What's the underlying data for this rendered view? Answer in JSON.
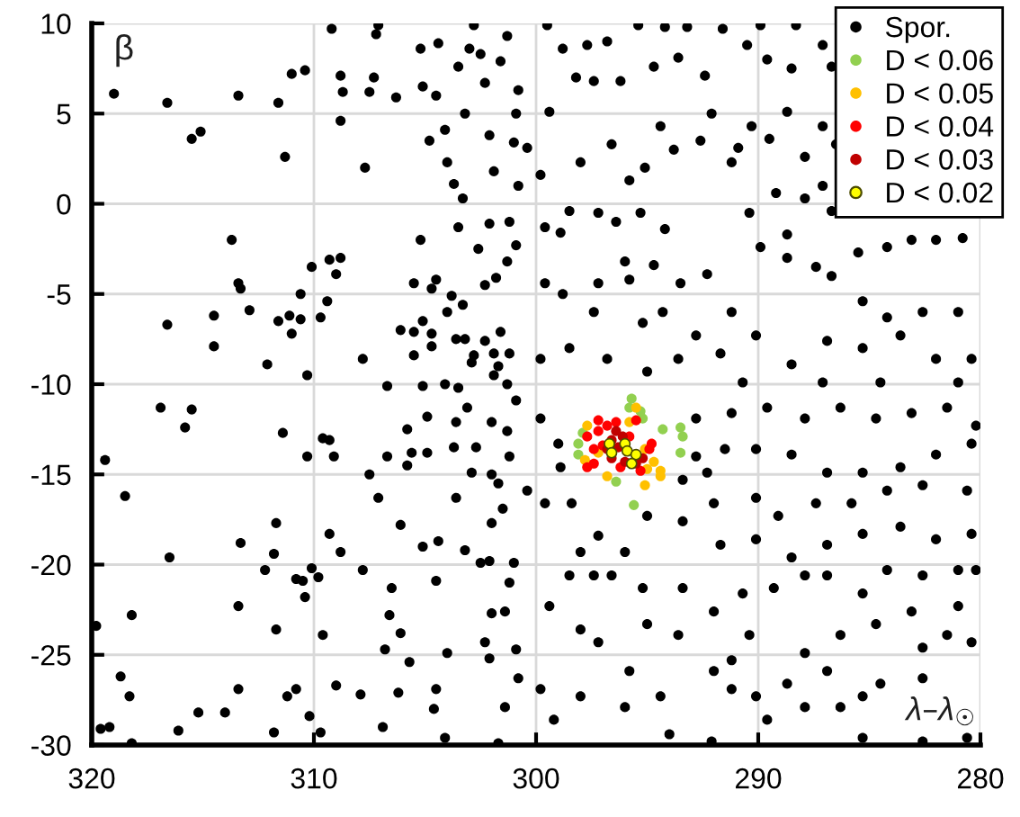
{
  "chart_data": {
    "type": "scatter",
    "xlabel": "λ–λ$_{☉}$",
    "ylabel": "β",
    "xlim": [
      320,
      280
    ],
    "ylim": [
      -30,
      10
    ],
    "xticks": [
      320,
      310,
      300,
      290,
      280
    ],
    "yticks": [
      -30,
      -25,
      -20,
      -15,
      -10,
      -5,
      0,
      5,
      10
    ],
    "grid": true,
    "legend": "top right",
    "marker": "circle",
    "series": [
      {
        "name": "Spor.",
        "color": "#000000",
        "x": [
          319.0,
          316.6,
          315.5,
          315.1,
          313.4,
          311.6,
          311.3,
          311.0,
          310.4,
          309.2,
          308.8,
          308.7,
          308.8,
          307.7,
          307.5,
          307.3,
          307.1,
          307.2,
          306.3,
          305.2,
          305.1,
          304.5,
          304.4,
          304.1,
          304.8,
          304.0,
          303.7,
          303.3,
          303.5,
          305.2,
          302.8,
          303.0,
          303.5,
          302.5,
          303.2,
          302.3,
          302.1,
          301.9,
          301.3,
          301.6,
          301.0,
          300.9,
          300.8,
          301.2,
          302.1,
          302.6,
          300.9,
          301.3,
          313.7,
          313.4,
          313.3,
          312.9,
          314.5,
          314.5,
          316.6,
          312.1,
          311.6,
          311.1,
          311.0,
          310.6,
          310.6,
          310.3,
          310.1,
          309.4,
          309.7,
          309.3,
          309.0,
          308.8,
          307.8,
          306.7,
          306.1,
          305.5,
          305.5,
          304.7,
          304.5,
          305.5,
          305.1,
          304.7,
          304.7,
          304.0,
          303.8,
          303.6,
          303.2,
          303.3,
          302.8,
          302.9,
          302.3,
          301.6,
          301.9,
          301.7,
          301.8,
          302.3,
          301.2,
          301.9,
          301.3,
          304.1,
          305.1,
          303.5,
          319.8,
          319.4,
          319.6,
          319.2,
          318.5,
          318.2,
          318.3,
          318.7,
          318.2,
          316.9,
          315.8,
          315.5,
          316.5,
          316.1,
          315.2,
          314.0,
          313.4,
          313.4,
          313.3,
          312.2,
          311.8,
          311.7,
          311.7,
          311.8,
          311.4,
          310.8,
          310.5,
          310.4,
          311.2,
          310.8,
          310.3,
          310.2,
          310.1,
          309.8,
          309.6,
          309.7,
          309.6,
          309.3,
          309.1,
          309.3,
          308.8,
          309.0,
          307.9,
          307.8,
          307.5,
          307.1,
          306.9,
          306.7,
          306.8,
          306.6,
          306.5,
          306.2,
          306.1,
          306.1,
          305.8,
          305.6,
          305.8,
          305.7,
          305.1,
          304.9,
          304.9,
          304.5,
          304.6,
          304.5,
          304.4,
          304.1,
          304.0,
          303.7,
          303.6,
          303.6,
          303.2,
          303.1,
          302.7,
          302.9,
          302.5,
          302.1,
          302.3,
          302.1,
          302.0,
          302.0,
          302.0,
          301.7,
          301.5,
          301.4,
          301.4,
          301.7,
          301.2,
          301.0,
          300.9,
          300.8,
          302.0,
          301.3,
          301.2,
          299.5,
          298.8,
          297.7,
          296.8,
          295.4,
          294.2,
          293.2,
          291.6,
          289.9,
          288.3,
          287.1,
          298.2,
          297.4,
          296.2,
          294.7,
          293.6,
          292.4,
          290.5,
          289.6,
          288.5,
          286.7,
          300.8,
          300.4,
          299.4,
          298.0,
          296.6,
          295.8,
          295.1,
          294.4,
          293.8,
          292.6,
          292.1,
          291.2,
          290.9,
          290.3,
          289.5,
          288.7,
          287.9,
          287.1,
          286.5,
          299.8,
          298.5,
          297.2,
          295.3,
          294.2,
          299.6,
          298.9,
          296.4,
          296.0,
          297.2,
          299.6,
          298.8,
          295.8,
          294.7,
          293.5,
          292.3,
          291.2,
          290.4,
          289.9,
          288.7,
          288.7,
          287.4,
          286.7,
          285.5,
          284.2,
          283.1,
          282.0,
          280.8,
          285.3,
          284.2,
          282.6,
          281.0,
          280.4,
          282.0,
          283.6,
          285.3,
          286.9,
          288.5,
          290.1,
          291.7,
          292.8,
          294.3,
          295.2,
          297.4,
          298.5,
          299.8,
          296.8,
          295.0,
          293.6,
          290.7,
          287.1,
          284.5,
          281.0,
          289.2,
          287.9,
          287.1,
          286.7,
          300.9,
          299.8,
          299.0,
          298.9,
          299.6,
          300.4,
          298.4,
          298.0,
          297.2,
          296.0,
          298.5,
          297.4,
          296.6,
          295.2,
          299.4,
          298.0,
          297.2,
          295.0,
          293.6,
          293.4,
          292.0,
          290.7,
          290.4,
          291.2,
          292.0,
          299.8,
          299.2,
          298.0,
          295.8,
          294.4,
          294.0,
          296.0,
          292.1,
          291.2,
          290.1,
          289.6,
          288.7,
          287.9,
          286.9,
          286.3,
          285.3,
          284.5,
          282.6,
          280.6,
          282.6,
          285.3,
          287.9,
          286.3,
          284.7,
          283.1,
          281.5,
          280.4,
          281.0,
          282.6,
          289.3,
          287.9,
          286.9,
          285.3,
          284.2,
          282.6,
          281.0,
          280.2,
          280.4,
          282.0,
          283.6,
          285.3,
          286.9,
          288.5,
          290.1,
          291.7,
          293.4,
          292.0,
          290.1,
          289.1,
          287.4,
          285.8,
          284.2,
          282.6,
          280.6,
          280.4,
          282.0,
          283.6,
          285.3,
          286.9,
          288.5,
          290.1,
          291.5,
          292.3,
          292.8,
          291.2,
          289.6,
          287.9,
          286.3,
          284.7,
          283.1,
          281.5,
          280.2,
          295.0,
          293.4,
          292.8
        ],
        "values": [
          6.1,
          5.6,
          3.6,
          4.0,
          6.0,
          5.6,
          2.6,
          7.2,
          7.4,
          9.7,
          7.1,
          6.2,
          4.6,
          2.0,
          6.2,
          7.0,
          9.9,
          9.4,
          5.9,
          8.6,
          6.5,
          6.0,
          8.9,
          4.1,
          3.5,
          2.3,
          1.1,
          0.3,
          -1.3,
          -2.0,
          9.9,
          8.6,
          7.6,
          8.3,
          5.0,
          6.7,
          3.8,
          1.8,
          9.3,
          7.9,
          3.4,
          5.0,
          1.0,
          -1.0,
          -1.1,
          -2.5,
          -2.3,
          -3.2,
          -2.0,
          -4.4,
          -4.7,
          -5.9,
          -6.2,
          -7.9,
          -6.7,
          -8.9,
          -6.5,
          -6.2,
          -7.2,
          -5.0,
          -6.4,
          -9.5,
          -3.5,
          -5.4,
          -6.3,
          -3.1,
          -3.9,
          -3.0,
          -8.6,
          -10.1,
          -7.0,
          -7.1,
          -4.4,
          -4.7,
          -4.2,
          -8.4,
          -6.5,
          -7.2,
          -7.9,
          -6.0,
          -5.1,
          -7.5,
          -7.5,
          -5.6,
          -8.4,
          -8.8,
          -7.6,
          -7.1,
          -8.3,
          -9.0,
          -4.1,
          -4.5,
          -8.3,
          -9.5,
          -10.0,
          -10.0,
          -10.1,
          -10.2,
          -23.4,
          -14.2,
          -29.1,
          -29.0,
          -16.2,
          -22.8,
          -27.3,
          -26.2,
          -29.9,
          -11.3,
          -12.4,
          -11.4,
          -19.6,
          -29.2,
          -28.2,
          -28.2,
          -26.9,
          -22.3,
          -18.8,
          -20.3,
          -19.4,
          -17.7,
          -23.6,
          -29.3,
          -12.7,
          -20.8,
          -20.9,
          -21.8,
          -27.3,
          -26.9,
          -14.0,
          -28.4,
          -20.2,
          -20.7,
          -23.9,
          -29.3,
          -13.0,
          -13.1,
          -14.0,
          -18.3,
          -19.3,
          -26.7,
          -27.2,
          -20.3,
          -15.0,
          -16.3,
          -29.0,
          -14.0,
          -24.7,
          -22.8,
          -21.3,
          -27.1,
          -17.8,
          -23.8,
          -14.5,
          -13.8,
          -12.5,
          -25.4,
          -19.0,
          -13.8,
          -11.8,
          -26.9,
          -28.0,
          -20.9,
          -18.7,
          -29.6,
          -24.9,
          -13.5,
          -12.1,
          -16.3,
          -19.2,
          -11.3,
          -13.5,
          -14.9,
          -19.9,
          -19.8,
          -24.3,
          -25.2,
          -22.7,
          -15.0,
          -17.7,
          -15.5,
          -16.9,
          -22.6,
          -27.9,
          -29.9,
          -21.0,
          -19.9,
          -24.7,
          -26.3,
          -12.1,
          -12.6,
          -14.0,
          9.9,
          8.6,
          8.8,
          9.0,
          9.9,
          9.8,
          9.8,
          9.7,
          9.9,
          9.9,
          8.8,
          7.0,
          6.8,
          6.8,
          7.6,
          8.1,
          7.1,
          8.8,
          8.0,
          7.5,
          7.6,
          6.3,
          3.1,
          5.1,
          2.3,
          3.3,
          1.3,
          2.0,
          4.3,
          3.0,
          3.5,
          5.0,
          2.3,
          3.1,
          4.3,
          3.6,
          5.1,
          2.6,
          4.3,
          3.3,
          1.6,
          -0.4,
          -0.5,
          -0.5,
          -1.4,
          -1.3,
          -1.6,
          -1.0,
          -3.2,
          -4.4,
          -4.4,
          -5.0,
          -4.2,
          -3.4,
          -4.4,
          -3.9,
          -6.0,
          -0.5,
          -2.4,
          -1.7,
          -3.0,
          -3.5,
          -4.0,
          -2.7,
          -2.4,
          -2.0,
          -2.0,
          -1.9,
          -5.4,
          -6.3,
          -6.0,
          -6.0,
          -8.6,
          -8.6,
          -7.3,
          -8.0,
          -7.6,
          -8.9,
          -7.3,
          -8.3,
          -7.3,
          -6.0,
          -6.6,
          -6.0,
          -8.0,
          -8.6,
          -8.6,
          -9.3,
          -8.6,
          -9.9,
          -9.9,
          -9.9,
          -9.9,
          0.6,
          0.3,
          1.0,
          -0.4,
          -10.9,
          -11.9,
          -13.3,
          -14.6,
          -16.6,
          -15.9,
          -16.6,
          -19.3,
          -18.4,
          -19.3,
          -20.6,
          -20.6,
          -20.6,
          -21.3,
          -22.3,
          -23.6,
          -24.3,
          -23.3,
          -23.9,
          -21.3,
          -22.6,
          -21.6,
          -23.9,
          -25.3,
          -25.9,
          -26.9,
          -28.6,
          -27.3,
          -25.9,
          -27.3,
          -29.4,
          -27.9,
          -29.8,
          -26.9,
          -27.3,
          -28.6,
          -26.6,
          -27.9,
          -25.9,
          -27.9,
          -27.3,
          -26.6,
          -26.3,
          -29.6,
          -29.8,
          -29.6,
          -24.9,
          -23.9,
          -23.3,
          -22.6,
          -23.9,
          -24.3,
          -22.3,
          -24.6,
          -21.3,
          -20.6,
          -20.6,
          -21.6,
          -20.3,
          -20.6,
          -20.3,
          -20.3,
          -18.3,
          -18.6,
          -17.9,
          -18.3,
          -18.9,
          -19.6,
          -18.6,
          -18.9,
          -17.6,
          -16.6,
          -16.3,
          -17.3,
          -16.6,
          -16.6,
          -15.9,
          -15.6,
          -15.9,
          -13.3,
          -13.9,
          -14.6,
          -14.9,
          -14.9,
          -13.9,
          -13.6,
          -13.6,
          -14.9,
          -11.9,
          -11.6,
          -11.3,
          -11.9,
          -11.3,
          -11.9,
          -11.6,
          -11.3,
          -12.3,
          -17.3,
          -15.3,
          -14.0
        ]
      },
      {
        "name": "D < 0.06",
        "color": "#92d050",
        "x": [
          295.7,
          295.2,
          294.3,
          293.5,
          293.4,
          293.5,
          298.1,
          298.1,
          297.9,
          296.4,
          295.6,
          295.3,
          295.8
        ],
        "values": [
          -10.8,
          -11.9,
          -12.5,
          -12.4,
          -12.9,
          -13.8,
          -13.3,
          -13.9,
          -12.7,
          -15.4,
          -16.7,
          -11.5,
          -11.3
        ]
      },
      {
        "name": "D < 0.05",
        "color": "#ffc000",
        "x": [
          295.5,
          297.7,
          297.8,
          296.8,
          295.1,
          294.7,
          294.4,
          295.0,
          295.8,
          297.2,
          295.1,
          294.4
        ],
        "values": [
          -11.3,
          -12.3,
          -14.2,
          -15.1,
          -15.6,
          -14.3,
          -14.8,
          -14.7,
          -12.1,
          -13.8,
          -13.6,
          -15.1
        ]
      },
      {
        "name": "D < 0.04",
        "color": "#ff0000",
        "x": [
          297.7,
          297.7,
          297.4,
          297.2,
          296.8,
          296.4,
          295.5,
          294.8,
          294.9,
          297.4,
          297.0,
          296.2,
          295.3,
          295.8,
          297.2
        ],
        "values": [
          -12.9,
          -14.6,
          -14.4,
          -12.0,
          -12.3,
          -12.1,
          -12.0,
          -13.3,
          -13.6,
          -13.6,
          -13.4,
          -14.6,
          -14.8,
          -12.9,
          -12.6
        ]
      },
      {
        "name": "D < 0.03",
        "color": "#c00000",
        "x": [
          296.6,
          296.1,
          296.3,
          296.6,
          295.2,
          295.5,
          296.8,
          296.0,
          296.4
        ],
        "values": [
          -13.1,
          -12.9,
          -13.5,
          -14.1,
          -14.1,
          -14.4,
          -13.6,
          -14.3,
          -12.6
        ]
      },
      {
        "name": "D < 0.02",
        "color": "#ffff00",
        "x": [
          296.7,
          296.6,
          296.0,
          295.9,
          295.5,
          295.7
        ],
        "values": [
          -13.3,
          -13.8,
          -13.3,
          -13.7,
          -13.9,
          -14.4
        ]
      }
    ]
  }
}
